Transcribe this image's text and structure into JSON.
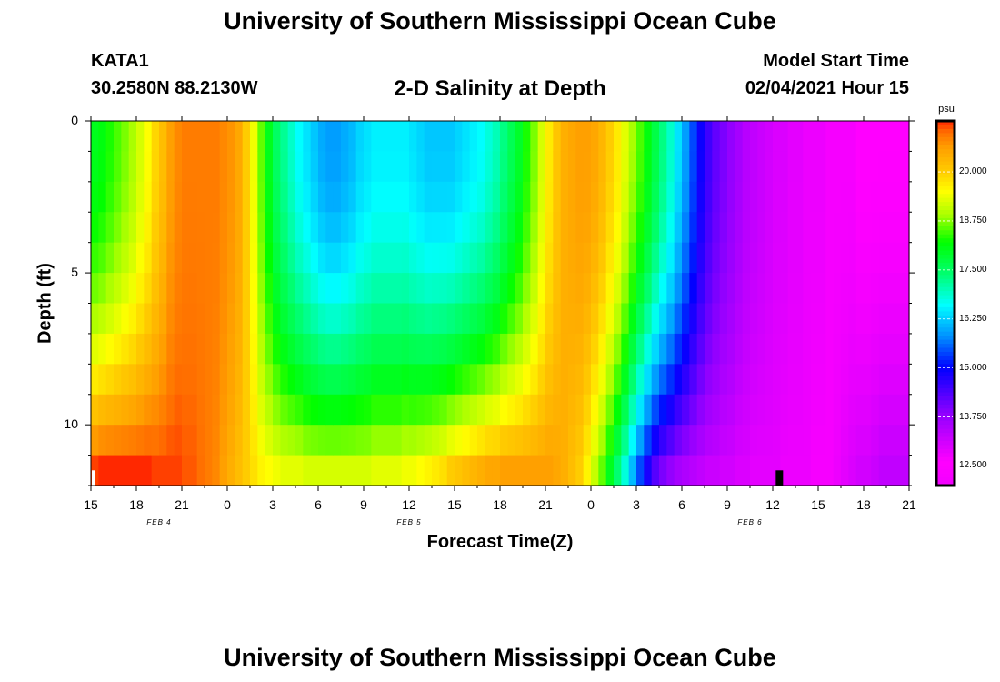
{
  "header": {
    "title_top": "University of Southern Mississippi Ocean Cube",
    "title_bottom": "University of Southern Mississippi Ocean Cube",
    "station": "KATA1",
    "location": "30.2580N 88.2130W",
    "plot_title": "2-D Salinity at Depth",
    "model_start_label": "Model Start Time",
    "model_start_time": "02/04/2021 Hour 15"
  },
  "chart_data": {
    "type": "heatmap",
    "title": "2-D Salinity at Depth",
    "xlabel": "Forecast Time(Z)",
    "ylabel": "Depth (ft)",
    "x_range_hours": [
      0,
      54
    ],
    "y_range_ft": [
      0,
      12
    ],
    "x_tick_labels": [
      "15",
      "18",
      "21",
      "0",
      "3",
      "6",
      "9",
      "12",
      "15",
      "18",
      "21",
      "0",
      "3",
      "6",
      "9",
      "12",
      "15",
      "18",
      "21"
    ],
    "y_tick_labels": [
      "0",
      "5",
      "10"
    ],
    "day_labels": [
      {
        "text": "FEB 4",
        "hour": 4.5
      },
      {
        "text": "FEB 5",
        "hour": 21
      },
      {
        "text": "FEB 6",
        "hour": 43.5
      }
    ],
    "colorbar": {
      "unit": "psu",
      "min": 12.0,
      "max": 21.3,
      "tick_labels": [
        "20.000",
        "18.750",
        "17.500",
        "16.250",
        "15.000",
        "13.750",
        "12.500"
      ],
      "tick_values": [
        20.0,
        18.75,
        17.5,
        16.25,
        15.0,
        13.75,
        12.5
      ]
    },
    "time_hours": [
      0,
      0.5,
      1,
      1.5,
      2,
      2.5,
      3,
      3.5,
      4,
      4.5,
      5,
      5.5,
      6,
      6.5,
      7,
      7.5,
      8,
      8.5,
      9,
      9.5,
      10,
      10.5,
      11,
      11.5,
      12,
      12.5,
      13,
      13.5,
      14,
      14.5,
      15,
      15.5,
      16,
      16.5,
      17,
      17.5,
      18,
      18.5,
      19,
      19.5,
      20,
      20.5,
      21,
      21.5,
      22,
      22.5,
      23,
      23.5,
      24,
      24.5,
      25,
      25.5,
      26,
      26.5,
      27,
      27.5,
      28,
      28.5,
      29,
      29.5,
      30,
      30.5,
      31,
      31.5,
      32,
      32.5,
      33,
      33.5,
      34,
      34.5,
      35,
      35.5,
      36,
      36.5,
      37,
      37.5,
      38,
      38.5,
      39,
      39.5,
      40,
      40.5,
      41,
      41.5,
      42,
      42.5,
      43,
      43.5,
      44,
      44.5,
      45,
      45.5,
      46,
      46.5,
      47,
      47.5,
      48,
      48.5,
      49,
      49.5,
      50,
      50.5,
      51,
      51.5,
      52,
      52.5,
      53,
      53.5
    ],
    "depth_levels_ft": [
      0,
      1,
      2,
      3,
      4,
      5,
      6,
      7,
      8,
      9,
      10,
      11
    ],
    "salinity_top_psu": [
      18.0,
      18.1,
      18.3,
      18.5,
      18.7,
      18.9,
      19.2,
      19.5,
      19.9,
      20.2,
      20.6,
      20.8,
      20.9,
      20.9,
      20.9,
      20.9,
      20.9,
      20.8,
      20.7,
      20.5,
      20.0,
      19.4,
      18.6,
      18.0,
      17.5,
      17.2,
      16.9,
      16.6,
      16.4,
      16.2,
      16.0,
      15.9,
      15.9,
      16.0,
      16.1,
      16.3,
      16.4,
      16.5,
      16.5,
      16.5,
      16.5,
      16.5,
      16.4,
      16.3,
      16.2,
      16.2,
      16.2,
      16.2,
      16.3,
      16.4,
      16.5,
      16.6,
      16.8,
      17.0,
      17.3,
      17.6,
      17.9,
      18.3,
      18.7,
      19.2,
      19.7,
      20.1,
      20.4,
      20.5,
      20.6,
      20.6,
      20.5,
      20.3,
      20.0,
      19.7,
      19.3,
      18.9,
      18.5,
      18.1,
      17.7,
      17.3,
      16.9,
      16.4,
      15.9,
      15.4,
      14.9,
      14.5,
      14.2,
      14.0,
      13.8,
      13.6,
      13.4,
      13.3,
      13.2,
      13.1,
      13.0,
      13.0,
      12.9,
      12.9,
      12.8,
      12.8,
      12.8,
      12.7,
      12.7,
      12.7,
      12.7,
      12.6,
      12.6,
      12.6,
      12.6,
      12.6,
      12.6,
      12.6
    ],
    "salinity_bottom_psu": [
      21.2,
      21.3,
      21.3,
      21.3,
      21.3,
      21.3,
      21.3,
      21.3,
      21.2,
      21.2,
      21.2,
      21.2,
      21.1,
      21.1,
      21.0,
      20.9,
      20.8,
      20.6,
      20.4,
      20.2,
      20.0,
      19.8,
      19.6,
      19.5,
      19.4,
      19.3,
      19.3,
      19.3,
      19.2,
      19.2,
      19.2,
      19.2,
      19.2,
      19.2,
      19.2,
      19.2,
      19.2,
      19.3,
      19.3,
      19.3,
      19.3,
      19.4,
      19.4,
      19.5,
      19.6,
      19.7,
      19.8,
      20.0,
      20.1,
      20.2,
      20.3,
      20.4,
      20.5,
      20.5,
      20.6,
      20.6,
      20.6,
      20.6,
      20.6,
      20.6,
      20.6,
      20.5,
      20.4,
      20.2,
      20.0,
      19.6,
      19.1,
      18.6,
      18.0,
      17.4,
      16.8,
      16.1,
      15.4,
      14.8,
      14.3,
      14.0,
      13.8,
      13.6,
      13.5,
      13.4,
      13.3,
      13.2,
      13.2,
      13.1,
      13.1,
      13.0,
      13.0,
      12.9,
      12.9,
      12.9,
      12.9,
      12.8,
      12.8,
      12.8,
      12.8,
      12.7,
      12.7,
      12.7,
      12.8,
      12.9,
      13.0,
      13.1,
      13.1,
      13.2,
      13.3,
      13.3,
      13.3,
      13.3
    ],
    "depth_profile_exponent": 2.0,
    "colormap": {
      "stops": [
        12.0,
        12.6,
        13.8,
        15.0,
        15.8,
        16.6,
        17.4,
        18.2,
        18.9,
        19.5,
        20.0,
        20.6,
        21.0,
        21.3
      ],
      "colors": [
        "#f200ff",
        "#ff00ff",
        "#9400ff",
        "#0000ff",
        "#0090ff",
        "#00ffff",
        "#00ff70",
        "#00ff00",
        "#aaff00",
        "#ffff00",
        "#ffcc00",
        "#ffa000",
        "#ff7000",
        "#ff2800"
      ]
    }
  }
}
